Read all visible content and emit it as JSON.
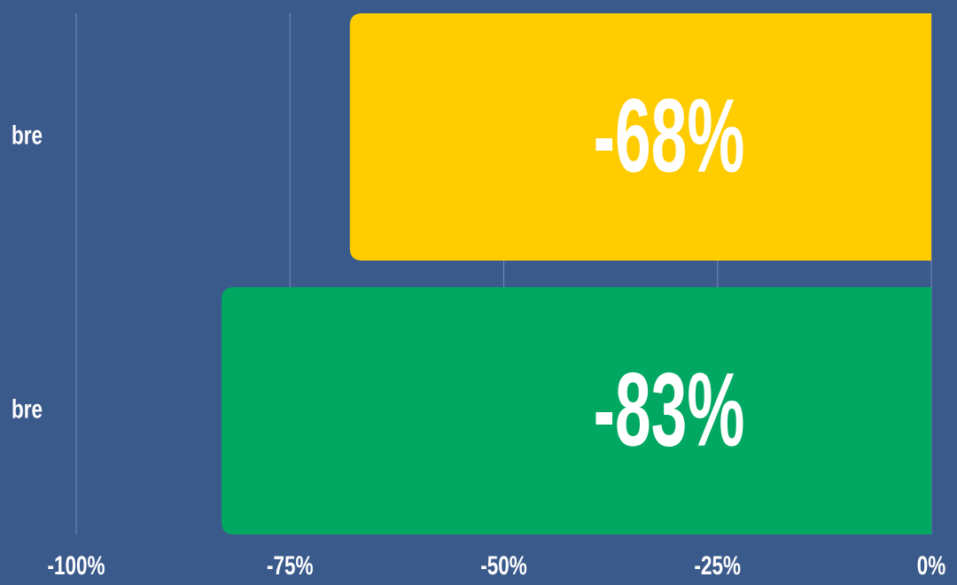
{
  "chart_data": {
    "type": "barh",
    "categories": [
      "bre",
      "bre"
    ],
    "values": [
      -68,
      -83
    ],
    "value_labels": [
      "-68%",
      "-83%"
    ],
    "colors": [
      "#ffcc00",
      "#00a862"
    ],
    "xlim": [
      -100,
      0
    ],
    "xticks": [
      {
        "value": -100,
        "label": "-100%"
      },
      {
        "value": -75,
        "label": "-75%"
      },
      {
        "value": -50,
        "label": "-50%"
      },
      {
        "value": -25,
        "label": "-25%"
      },
      {
        "value": 0,
        "label": "0%"
      }
    ],
    "grid": true
  }
}
